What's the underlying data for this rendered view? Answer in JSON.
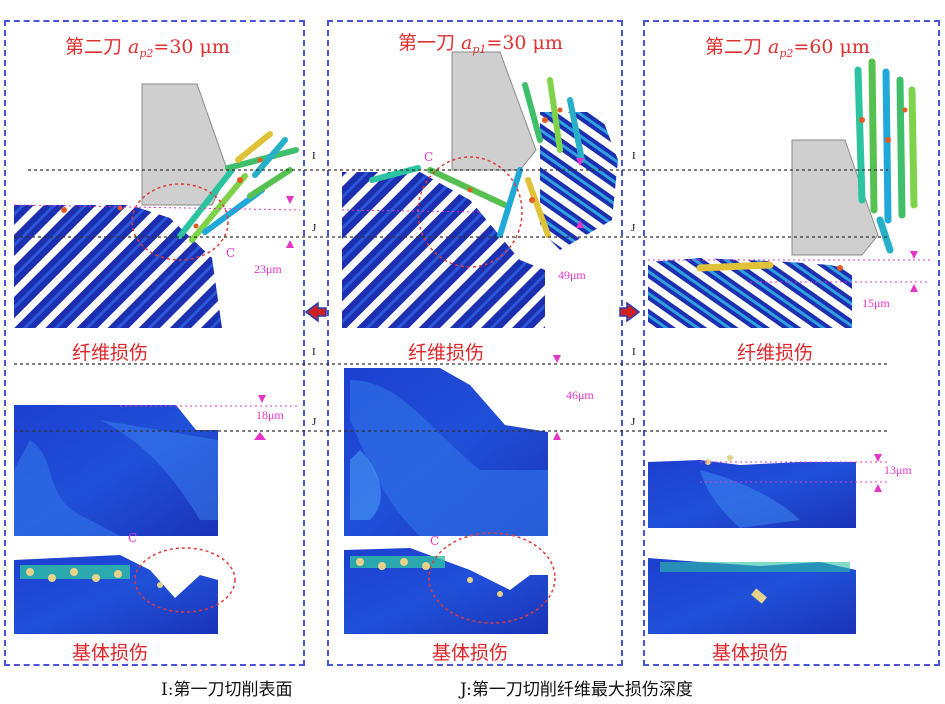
{
  "panels": [
    {
      "title_prefix": "第二刀 ",
      "title_var": "a",
      "title_sub": "p2",
      "title_value": "=30 μm",
      "fiber_label": "纤维损伤",
      "matrix_label": "基体损伤",
      "fiber_depth": "23μm",
      "matrix_depth": "18μm"
    },
    {
      "title_prefix": "第一刀 ",
      "title_var": "a",
      "title_sub": "p1",
      "title_value": "=30 μm",
      "fiber_label": "纤维损伤",
      "matrix_label": "基体损伤",
      "fiber_depth": "49μm",
      "matrix_depth": "46μm"
    },
    {
      "title_prefix": "第二刀 ",
      "title_var": "a",
      "title_sub": "p2",
      "title_value": "=60 μm",
      "fiber_label": "纤维损伤",
      "matrix_label": "基体损伤",
      "fiber_depth": "15μm",
      "matrix_depth": "13μm"
    }
  ],
  "marks": {
    "c": "C",
    "i": "I",
    "j": "J"
  },
  "captions": {
    "i_line": "I:第一刀切削表面",
    "j_line": "J:第一刀切削纤维最大损伤深度"
  },
  "colors": {
    "panel_border": "#4a55d6",
    "title_red": "#e03030",
    "annotation_magenta": "#e535c9",
    "tool_gray": "#cfcfcf",
    "fiber_blue": "#1b2fb0",
    "arrow_fill": "#cc2222"
  }
}
